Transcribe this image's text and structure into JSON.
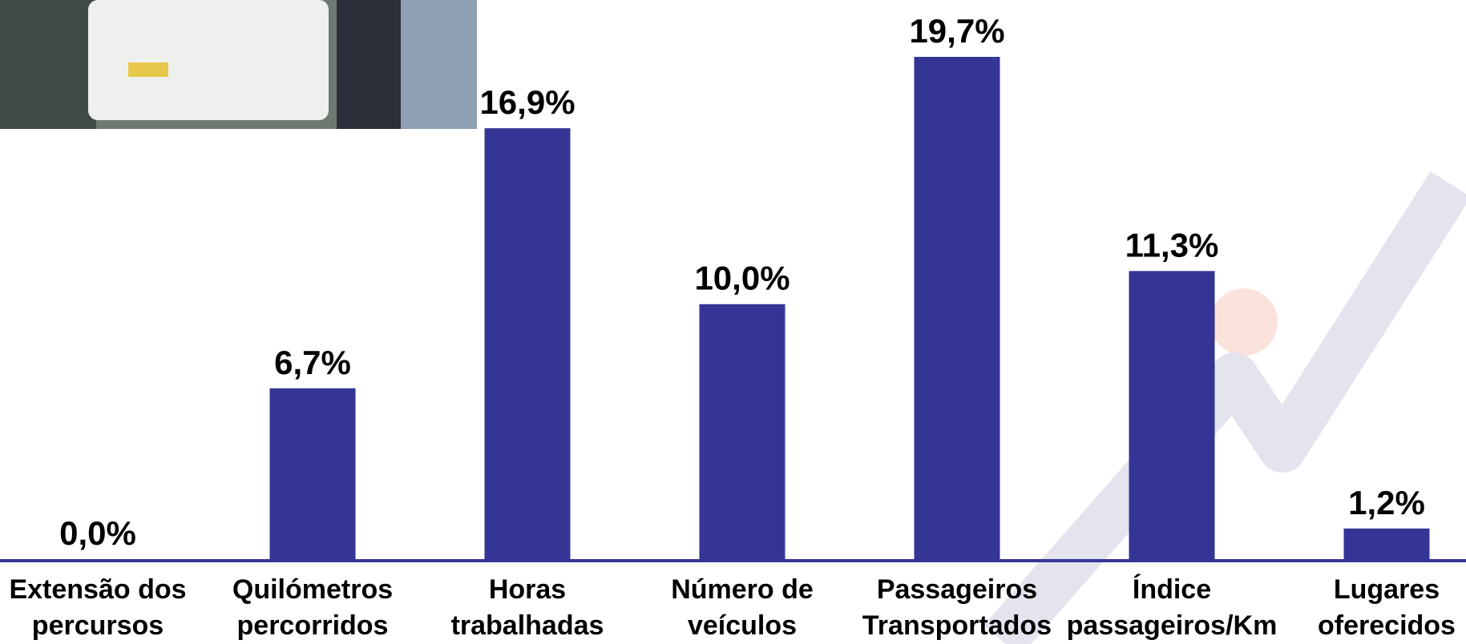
{
  "chart_data": {
    "type": "bar",
    "categories": [
      [
        "Extensão dos",
        "percursos"
      ],
      [
        "Quilómetros",
        "percorridos"
      ],
      [
        "Horas",
        "trabalhadas"
      ],
      [
        "Número de",
        "veículos"
      ],
      [
        "Passageiros",
        "Transportados"
      ],
      [
        "Índice",
        "passageiros/Km"
      ],
      [
        "Lugares",
        "oferecidos"
      ]
    ],
    "values": [
      0.0,
      6.7,
      16.9,
      10.0,
      19.7,
      11.3,
      1.2
    ],
    "value_labels": [
      "0,0%",
      "6,7%",
      "16,9%",
      "10,0%",
      "19,7%",
      "11,3%",
      "1,2%"
    ],
    "color": "#353596"
  }
}
